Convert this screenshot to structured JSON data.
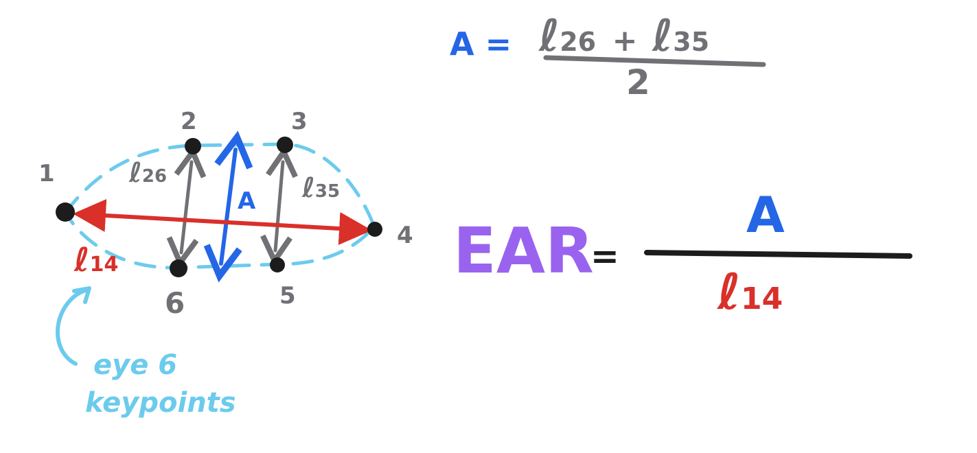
{
  "colors": {
    "gray": "#707075",
    "blue": "#2466e6",
    "red": "#d9302a",
    "cyan": "#6ccbed",
    "purple": "#9a63ef",
    "black": "#1c1c1c"
  },
  "diagram": {
    "keypoint_labels": [
      "1",
      "2",
      "3",
      "4",
      "5",
      "6"
    ],
    "distance_labels": {
      "l26": {
        "letter": "ℓ",
        "sub": "26"
      },
      "l35": {
        "letter": "ℓ",
        "sub": "35"
      },
      "l14": {
        "letter": "ℓ",
        "sub": "14"
      }
    },
    "vertical_label": "A",
    "annotation": [
      "eye 6",
      "keypoints"
    ]
  },
  "formula_a": {
    "lhs": "A =",
    "term1": {
      "letter": "ℓ",
      "sub": "26"
    },
    "plus": "+",
    "term2": {
      "letter": "ℓ",
      "sub": "35"
    },
    "denominator": "2"
  },
  "formula_ear": {
    "lhs": "EAR",
    "equals": "=",
    "numerator": "A",
    "denominator": {
      "letter": "ℓ",
      "sub": "14"
    }
  }
}
